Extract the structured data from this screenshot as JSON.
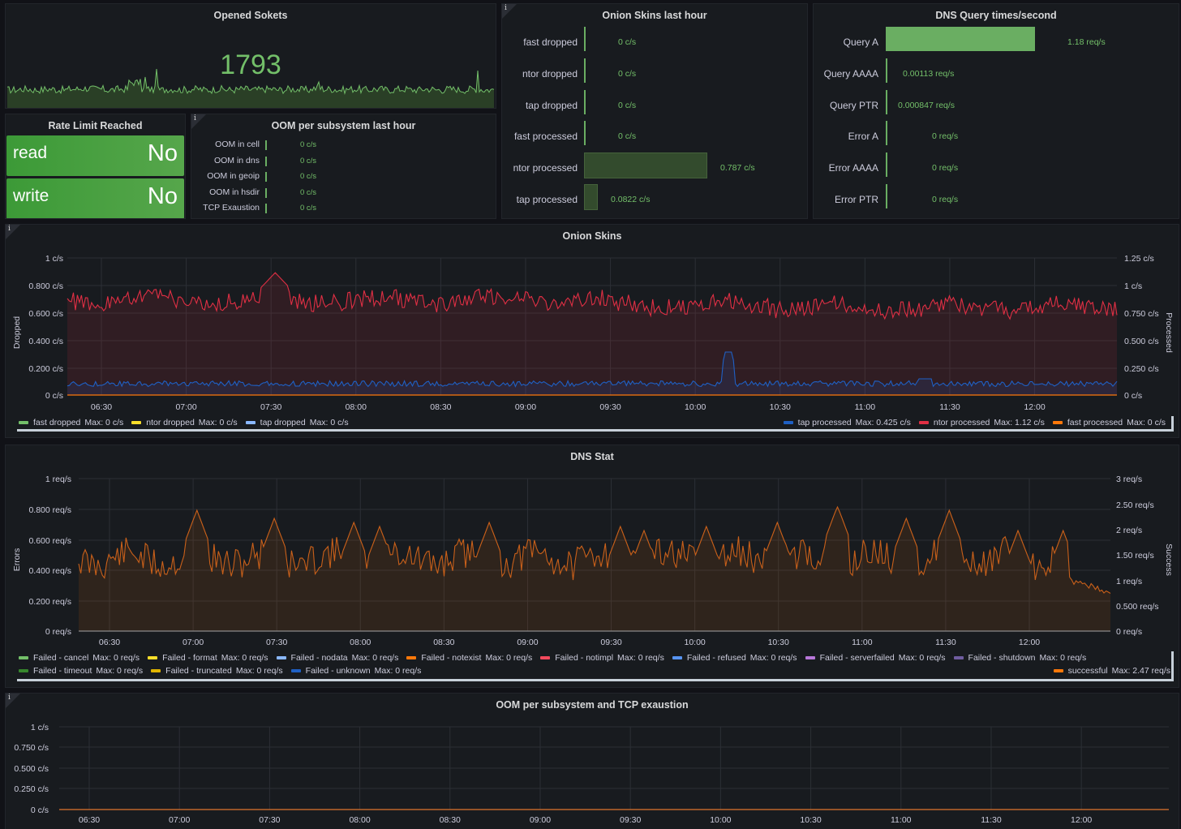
{
  "opened_sockets": {
    "title": "Opened Sokets",
    "value": "1793"
  },
  "rate_limit": {
    "title": "Rate Limit Reached",
    "rows": [
      {
        "label": "read",
        "value": "No"
      },
      {
        "label": "write",
        "value": "No"
      }
    ]
  },
  "oom_subsystem": {
    "title": "OOM per subsystem last hour",
    "info": "i",
    "rows": [
      {
        "label": "OOM in cell",
        "value": "0 c/s"
      },
      {
        "label": "OOM in dns",
        "value": "0 c/s"
      },
      {
        "label": "OOM in geoip",
        "value": "0 c/s"
      },
      {
        "label": "OOM in hsdir",
        "value": "0 c/s"
      },
      {
        "label": "TCP Exaustion",
        "value": "0 c/s"
      }
    ]
  },
  "onion_hour": {
    "title": "Onion Skins last hour",
    "info": "i",
    "rows": [
      {
        "label": "fast dropped",
        "value": "0 c/s",
        "fill": 0
      },
      {
        "label": "ntor dropped",
        "value": "0 c/s",
        "fill": 0
      },
      {
        "label": "tap dropped",
        "value": "0 c/s",
        "fill": 0
      },
      {
        "label": "fast processed",
        "value": "0 c/s",
        "fill": 0
      },
      {
        "label": "ntor processed",
        "value": "0.787 c/s",
        "fill": 1
      },
      {
        "label": "tap processed",
        "value": "0.0822 c/s",
        "fill": 0.1
      }
    ]
  },
  "dns_query": {
    "title": "DNS Query times/second",
    "rows": [
      {
        "label": "Query A",
        "value": "1.18 req/s",
        "fill": 1
      },
      {
        "label": "Query AAAA",
        "value": "0.00113 req/s",
        "fill": 0
      },
      {
        "label": "Query PTR",
        "value": "0.000847 req/s",
        "fill": 0
      },
      {
        "label": "Error A",
        "value": "0 req/s",
        "fill": 0
      },
      {
        "label": "Error AAAA",
        "value": "0 req/s",
        "fill": 0
      },
      {
        "label": "Error PTR",
        "value": "0 req/s",
        "fill": 0
      }
    ]
  },
  "time_ticks": [
    "06:30",
    "07:00",
    "07:30",
    "08:00",
    "08:30",
    "09:00",
    "09:30",
    "10:00",
    "10:30",
    "11:00",
    "11:30",
    "12:00"
  ],
  "onion_skins": {
    "title": "Onion Skins",
    "info": "i",
    "left_axis_label": "Dropped",
    "right_axis_label": "Processed",
    "left_ticks": [
      "1 c/s",
      "0.800 c/s",
      "0.600 c/s",
      "0.400 c/s",
      "0.200 c/s",
      "0 c/s"
    ],
    "right_ticks": [
      "1.25 c/s",
      "1 c/s",
      "0.750 c/s",
      "0.500 c/s",
      "0.250 c/s",
      "0 c/s"
    ],
    "legend_left": [
      {
        "name": "fast dropped",
        "max": "Max: 0 c/s",
        "color": "#73bf69"
      },
      {
        "name": "ntor dropped",
        "max": "Max: 0 c/s",
        "color": "#fade2a"
      },
      {
        "name": "tap dropped",
        "max": "Max: 0 c/s",
        "color": "#8ab8ff"
      }
    ],
    "legend_right": [
      {
        "name": "tap processed",
        "max": "Max: 0.425 c/s",
        "color": "#1f60c4"
      },
      {
        "name": "ntor processed",
        "max": "Max: 1.12 c/s",
        "color": "#e02f44"
      },
      {
        "name": "fast processed",
        "max": "Max: 0 c/s",
        "color": "#ff780a"
      }
    ]
  },
  "dns_stat": {
    "title": "DNS Stat",
    "left_axis_label": "Errors",
    "right_axis_label": "Success",
    "left_ticks": [
      "1 req/s",
      "0.800 req/s",
      "0.600 req/s",
      "0.400 req/s",
      "0.200 req/s",
      "0 req/s"
    ],
    "right_ticks": [
      "3 req/s",
      "2.50 req/s",
      "2 req/s",
      "1.50 req/s",
      "1 req/s",
      "0.500 req/s",
      "0 req/s"
    ],
    "legend_row1": [
      {
        "name": "Failed - cancel",
        "max": "Max: 0 req/s",
        "color": "#73bf69"
      },
      {
        "name": "Failed - format",
        "max": "Max: 0 req/s",
        "color": "#fade2a"
      },
      {
        "name": "Failed - nodata",
        "max": "Max: 0 req/s",
        "color": "#8ab8ff"
      },
      {
        "name": "Failed - notexist",
        "max": "Max: 0 req/s",
        "color": "#ff780a"
      },
      {
        "name": "Failed - notimpl",
        "max": "Max: 0 req/s",
        "color": "#f2495c"
      },
      {
        "name": "Failed - refused",
        "max": "Max: 0 req/s",
        "color": "#5794f2"
      },
      {
        "name": "Failed - serverfailed",
        "max": "Max: 0 req/s",
        "color": "#b877d9"
      },
      {
        "name": "Failed - shutdown",
        "max": "Max: 0 req/s",
        "color": "#705da0"
      }
    ],
    "legend_row2": [
      {
        "name": "Failed - timeout",
        "max": "Max: 0 req/s",
        "color": "#37872d"
      },
      {
        "name": "Failed - truncated",
        "max": "Max: 0 req/s",
        "color": "#e0b400"
      },
      {
        "name": "Failed - unknown",
        "max": "Max: 0 req/s",
        "color": "#1f60c4"
      }
    ],
    "legend_success": {
      "name": "successful",
      "max": "Max: 2.47 req/s",
      "color": "#ff780a"
    }
  },
  "oom_tcp": {
    "title": "OOM per subsystem and TCP exaustion",
    "info": "i",
    "left_ticks": [
      "1 c/s",
      "0.750 c/s",
      "0.500 c/s",
      "0.250 c/s",
      "0 c/s"
    ]
  },
  "chart_data": [
    {
      "type": "line",
      "title": "Opened Sokets",
      "series": [
        {
          "values": [
            2,
            3,
            2,
            3,
            2,
            3,
            4,
            3,
            2,
            3,
            12,
            3,
            2,
            3,
            2,
            3,
            2,
            3,
            2,
            3,
            2,
            3,
            2,
            3,
            2,
            4,
            3,
            2,
            3,
            2,
            3,
            2,
            3,
            2,
            3,
            2,
            3,
            2,
            3,
            2,
            3
          ]
        }
      ]
    },
    {
      "type": "line",
      "title": "Onion Skins",
      "xlabel": "",
      "ylabel": "Dropped",
      "categories": [
        "06:30",
        "07:00",
        "07:30",
        "08:00",
        "08:30",
        "09:00",
        "09:30",
        "10:00",
        "10:30",
        "11:00",
        "11:30",
        "12:00"
      ],
      "ylim": [
        0,
        1
      ],
      "series": [
        {
          "name": "ntor processed",
          "values": [
            0.99,
            0.96,
            1.0,
            1.1,
            0.96,
            0.95,
            0.96,
            0.92,
            0.95,
            0.93,
            0.9,
            0.9
          ]
        },
        {
          "name": "tap processed",
          "values": [
            0.05,
            0.04,
            0.05,
            0.04,
            0.05,
            0.05,
            0.05,
            0.42,
            0.05,
            0.05,
            0.06,
            0.05
          ]
        },
        {
          "name": "fast dropped",
          "values": [
            0,
            0,
            0,
            0,
            0,
            0,
            0,
            0,
            0,
            0,
            0,
            0
          ]
        },
        {
          "name": "ntor dropped",
          "values": [
            0,
            0,
            0,
            0,
            0,
            0,
            0,
            0,
            0,
            0,
            0,
            0
          ]
        },
        {
          "name": "tap dropped",
          "values": [
            0,
            0,
            0,
            0,
            0,
            0,
            0,
            0,
            0,
            0,
            0,
            0
          ]
        },
        {
          "name": "fast processed",
          "values": [
            0,
            0,
            0,
            0,
            0,
            0,
            0,
            0,
            0,
            0,
            0,
            0
          ]
        }
      ]
    },
    {
      "type": "area",
      "title": "DNS Stat",
      "xlabel": "",
      "ylabel": "Errors",
      "categories": [
        "06:30",
        "07:00",
        "07:30",
        "08:00",
        "08:30",
        "09:00",
        "09:30",
        "10:00",
        "10:30",
        "11:00",
        "11:30",
        "12:00"
      ],
      "ylim": [
        0,
        3
      ],
      "series": [
        {
          "name": "successful",
          "values": [
            1.4,
            2.3,
            1.3,
            1.3,
            1.2,
            1.9,
            1.3,
            1.9,
            1.4,
            1.2,
            1.3,
            1.3
          ]
        }
      ]
    },
    {
      "type": "line",
      "title": "OOM per subsystem and TCP exaustion",
      "categories": [
        "06:30",
        "07:00",
        "07:30",
        "08:00",
        "08:30",
        "09:00",
        "09:30",
        "10:00",
        "10:30",
        "11:00",
        "11:30",
        "12:00"
      ],
      "ylim": [
        0,
        1
      ],
      "series": [
        {
          "values": [
            0,
            0,
            0,
            0,
            0,
            0,
            0,
            0,
            0,
            0,
            0,
            0
          ]
        }
      ]
    }
  ]
}
